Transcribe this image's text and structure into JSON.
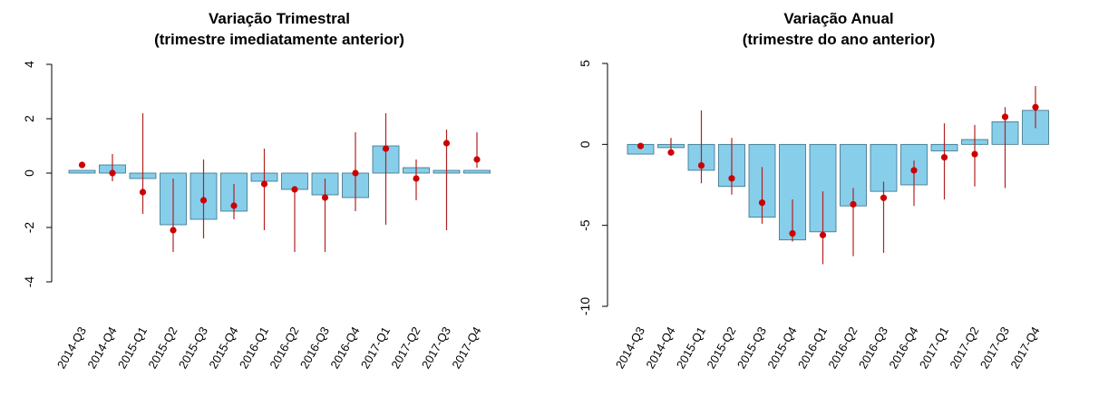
{
  "colors": {
    "bar_fill": "#87CEEB",
    "bar_stroke": "#3a6f84",
    "point": "#CC0000",
    "errorbar": "#B22222",
    "axis": "#000000"
  },
  "chart_data": [
    {
      "type": "bar",
      "title": "Variação Trimestral",
      "subtitle": "(trimestre imediatamente anterior)",
      "xlabel": "",
      "ylabel": "",
      "ylim": [
        -4,
        4
      ],
      "yticks": [
        -4,
        -2,
        0,
        2,
        4
      ],
      "grid": false,
      "categories": [
        "2014-Q3",
        "2014-Q4",
        "2015-Q1",
        "2015-Q2",
        "2015-Q3",
        "2015-Q4",
        "2016-Q1",
        "2016-Q2",
        "2016-Q3",
        "2016-Q4",
        "2017-Q1",
        "2017-Q2",
        "2017-Q3",
        "2017-Q4"
      ],
      "values": [
        0.1,
        0.3,
        -0.2,
        -1.9,
        -1.7,
        -1.4,
        -0.3,
        -0.6,
        -0.8,
        -0.9,
        1.0,
        0.2,
        0.1,
        0.1
      ],
      "points": [
        0.3,
        0.0,
        -0.7,
        -2.1,
        -1.0,
        -1.2,
        -0.4,
        -0.6,
        -0.9,
        0.0,
        0.9,
        -0.2,
        1.1,
        0.5
      ],
      "err_low": [
        0.2,
        -0.3,
        -1.5,
        -2.9,
        -2.4,
        -1.7,
        -2.1,
        -2.9,
        -2.9,
        -1.4,
        -1.9,
        -1.0,
        -2.1,
        0.2
      ],
      "err_high": [
        0.3,
        0.7,
        2.2,
        -0.2,
        0.5,
        -0.4,
        0.9,
        -0.6,
        -0.2,
        1.5,
        2.2,
        0.5,
        1.6,
        1.5
      ]
    },
    {
      "type": "bar",
      "title": "Variação Anual",
      "subtitle": "(trimestre do ano anterior)",
      "xlabel": "",
      "ylabel": "",
      "ylim": [
        -10,
        5
      ],
      "yticks": [
        -10,
        -5,
        0,
        5
      ],
      "grid": false,
      "categories": [
        "2014-Q3",
        "2014-Q4",
        "2015-Q1",
        "2015-Q2",
        "2015-Q3",
        "2015-Q4",
        "2016-Q1",
        "2016-Q2",
        "2016-Q3",
        "2016-Q4",
        "2017-Q1",
        "2017-Q2",
        "2017-Q3",
        "2017-Q4"
      ],
      "values": [
        -0.6,
        -0.2,
        -1.6,
        -2.6,
        -4.5,
        -5.9,
        -5.4,
        -3.8,
        -2.9,
        -2.5,
        -0.4,
        0.3,
        1.4,
        2.1
      ],
      "points": [
        -0.1,
        -0.5,
        -1.3,
        -2.1,
        -3.6,
        -5.5,
        -5.6,
        -3.7,
        -3.3,
        -1.6,
        -0.8,
        -0.6,
        1.7,
        2.3
      ],
      "err_low": [
        -0.2,
        -0.6,
        -2.4,
        -3.1,
        -4.9,
        -6.0,
        -7.4,
        -6.9,
        -6.7,
        -3.8,
        -3.4,
        -2.6,
        -2.7,
        1.0
      ],
      "err_high": [
        0.0,
        0.4,
        2.1,
        0.4,
        -1.4,
        -3.4,
        -2.9,
        -2.7,
        -2.3,
        -1.0,
        1.3,
        1.2,
        2.3,
        3.6
      ]
    }
  ]
}
